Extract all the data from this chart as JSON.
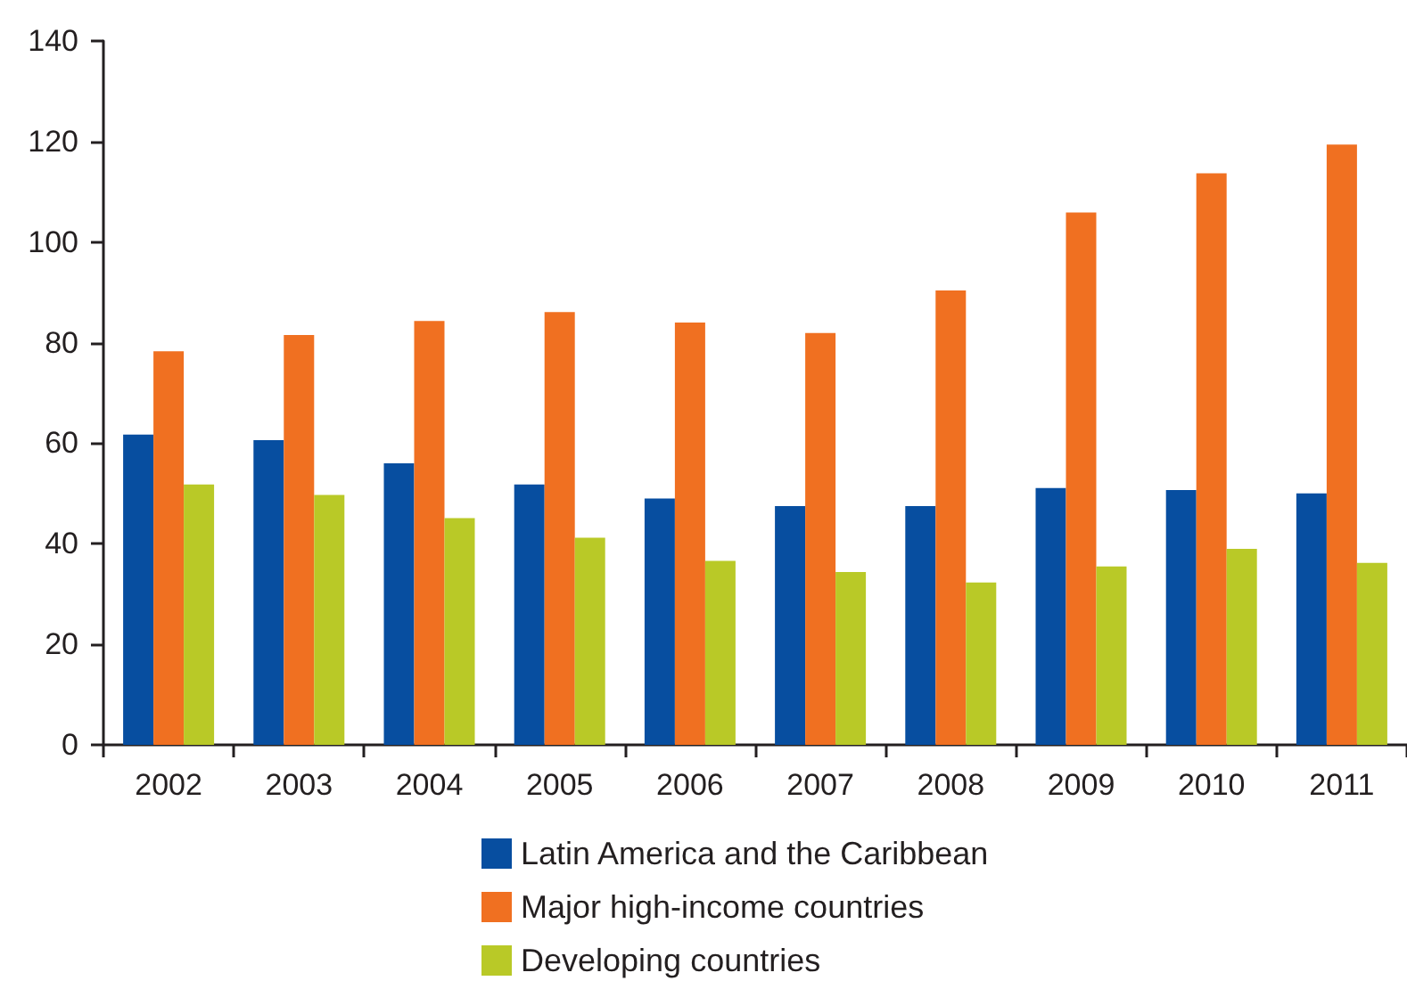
{
  "chart_data": {
    "type": "bar",
    "categories": [
      "2002",
      "2003",
      "2004",
      "2005",
      "2006",
      "2007",
      "2008",
      "2009",
      "2010",
      "2011"
    ],
    "series": [
      {
        "name": "Latin America and the Caribbean",
        "color": "#074ea0",
        "values": [
          61.7,
          60.6,
          56.0,
          51.8,
          49.0,
          47.5,
          47.5,
          51.1,
          50.7,
          50.0
        ]
      },
      {
        "name": "Major high-income countries",
        "color": "#f07021",
        "values": [
          78.3,
          81.5,
          84.3,
          86.1,
          84.0,
          81.9,
          90.4,
          105.9,
          113.7,
          119.4
        ]
      },
      {
        "name": "Developing countries",
        "color": "#b9c927",
        "values": [
          51.8,
          49.7,
          45.1,
          41.2,
          36.6,
          34.4,
          32.3,
          35.5,
          39.0,
          36.2
        ]
      }
    ],
    "ylim": [
      0,
      140
    ],
    "yticks": [
      0,
      20,
      40,
      60,
      80,
      100,
      120,
      140
    ],
    "grid": false,
    "legend": "bottom"
  }
}
